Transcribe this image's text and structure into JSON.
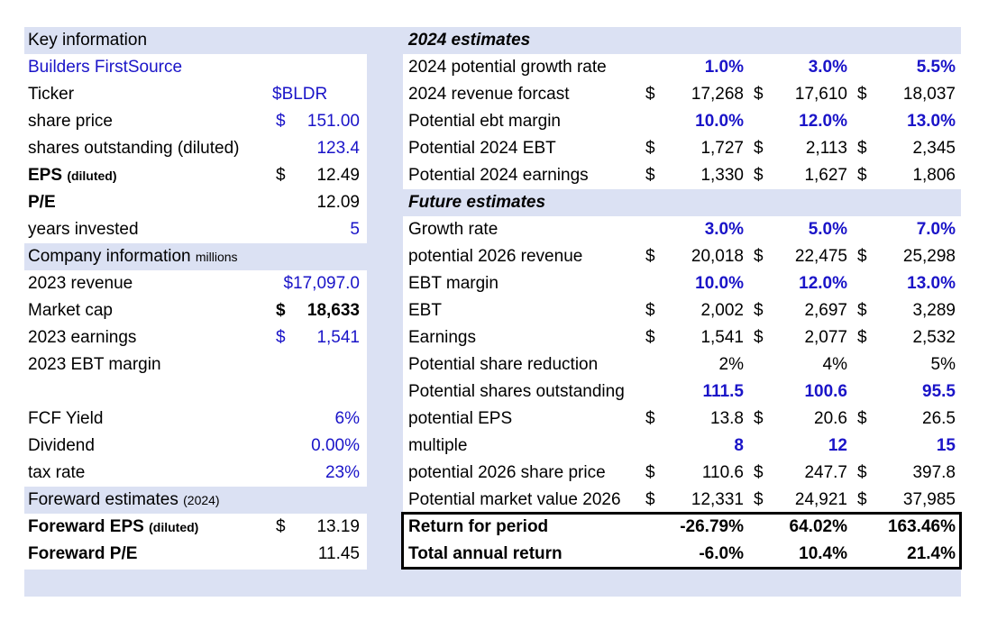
{
  "colors": {
    "band": "#dbe1f3",
    "input_blue": "#1a14c8",
    "text": "#000000"
  },
  "left": {
    "key_info": "Key information",
    "company_name": "Builders FirstSource",
    "ticker_label": "Ticker",
    "ticker_value": "$BLDR",
    "share_price_label": "share price",
    "share_price_dollar": "$",
    "share_price_value": "151.00",
    "shares_out_label": "shares outstanding (diluted)",
    "shares_out_value": "123.4",
    "eps_label_main": "EPS",
    "eps_label_sub": "(diluted)",
    "eps_dollar": "$",
    "eps_value": "12.49",
    "pe_label": "P/E",
    "pe_value": "12.09",
    "years_label": "years invested",
    "years_value": "5",
    "company_info_main": "Company information",
    "company_info_sub": "millions",
    "revenue_label": "2023 revenue",
    "revenue_value": "$17,097.0",
    "mcap_label": "Market cap",
    "mcap_dollar": "$",
    "mcap_value": "18,633",
    "earnings_label": "2023 earnings",
    "earnings_dollar": "$",
    "earnings_value": "1,541",
    "ebt_margin_label": "2023 EBT margin",
    "fcf_label": "FCF Yield",
    "fcf_value": "6%",
    "dividend_label": "Dividend",
    "dividend_value": "0.00%",
    "tax_label": "tax rate",
    "tax_value": "23%",
    "fwd_est_main": "Foreward estimates",
    "fwd_est_sub": "(2024)",
    "fwd_eps_main": "Foreward EPS",
    "fwd_eps_sub": "(diluted)",
    "fwd_eps_dollar": "$",
    "fwd_eps_value": "13.19",
    "fwd_pe_label": "Foreward P/E",
    "fwd_pe_value": "11.45"
  },
  "right": {
    "est2024_title": "2024 estimates",
    "growth2024_label": "2024 potential growth rate",
    "growth2024": [
      "1.0%",
      "3.0%",
      "5.5%"
    ],
    "rev2024_label": "2024 revenue forcast",
    "rev2024": [
      "17,268",
      "17,610",
      "18,037"
    ],
    "ebtm2024_label": "Potential ebt margin",
    "ebtm2024": [
      "10.0%",
      "12.0%",
      "13.0%"
    ],
    "ebt2024_label": "Potential 2024 EBT",
    "ebt2024": [
      "1,727",
      "2,113",
      "2,345"
    ],
    "earn2024_label": "Potential 2024 earnings",
    "earn2024": [
      "1,330",
      "1,627",
      "1,806"
    ],
    "future_title": "Future estimates",
    "growth_label": "Growth rate",
    "growth": [
      "3.0%",
      "5.0%",
      "7.0%"
    ],
    "rev2026_label": "potential 2026 revenue",
    "rev2026": [
      "20,018",
      "22,475",
      "25,298"
    ],
    "ebtm_label": "EBT margin",
    "ebtm": [
      "10.0%",
      "12.0%",
      "13.0%"
    ],
    "ebt_label": "EBT",
    "ebt": [
      "2,002",
      "2,697",
      "3,289"
    ],
    "earnings_label": "Earnings",
    "earnings": [
      "1,541",
      "2,077",
      "2,532"
    ],
    "reduction_label": "Potential share reduction",
    "reduction": [
      "2%",
      "4%",
      "5%"
    ],
    "shares_label": "Potential shares outstanding",
    "shares": [
      "111.5",
      "100.6",
      "95.5"
    ],
    "peps_label": "potential EPS",
    "peps": [
      "13.8",
      "20.6",
      "26.5"
    ],
    "multiple_label": "multiple",
    "multiple": [
      "8",
      "12",
      "15"
    ],
    "price2026_label": "potential 2026 share price",
    "price2026": [
      "110.6",
      "247.7",
      "397.8"
    ],
    "mv2026_label": "Potential market value 2026",
    "mv2026": [
      "12,331",
      "24,921",
      "37,985"
    ],
    "return_label": "Return for period",
    "return": [
      "-26.79%",
      "64.02%",
      "163.46%"
    ],
    "annual_label": "Total annual return",
    "annual": [
      "-6.0%",
      "10.4%",
      "21.4%"
    ],
    "dollar": "$"
  }
}
